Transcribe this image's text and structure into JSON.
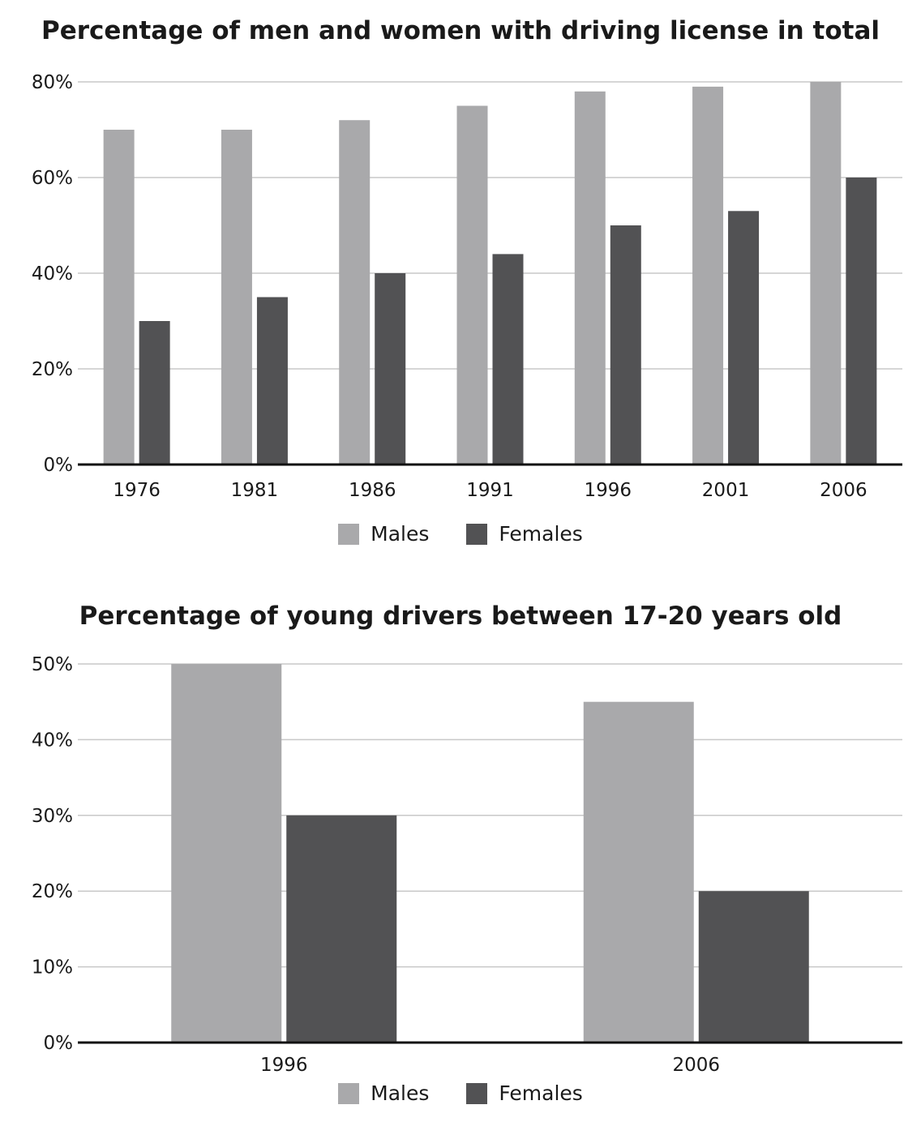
{
  "colors": {
    "males": "#a9a9ab",
    "females": "#525254",
    "grid": "#c8c8c8",
    "axis": "#111111"
  },
  "chart_data": [
    {
      "type": "bar",
      "title": "Percentage of men and women with driving license in total",
      "categories": [
        "1976",
        "1981",
        "1986",
        "1991",
        "1996",
        "2001",
        "2006"
      ],
      "series": [
        {
          "name": "Males",
          "values": [
            70,
            70,
            72,
            75,
            78,
            79,
            80
          ]
        },
        {
          "name": "Females",
          "values": [
            30,
            35,
            40,
            44,
            50,
            53,
            60
          ]
        }
      ],
      "xlabel": "",
      "ylabel": "",
      "ylim": [
        0,
        80
      ],
      "yticks": [
        "0%",
        "20%",
        "40%",
        "60%",
        "80%"
      ],
      "ytick_values": [
        0,
        20,
        40,
        60,
        80
      ],
      "grid": true,
      "legend": "bottom-center"
    },
    {
      "type": "bar",
      "title": "Percentage of young drivers between 17-20 years old",
      "categories": [
        "1996",
        "2006"
      ],
      "series": [
        {
          "name": "Males",
          "values": [
            50,
            45
          ]
        },
        {
          "name": "Females",
          "values": [
            30,
            20
          ]
        }
      ],
      "xlabel": "",
      "ylabel": "",
      "ylim": [
        0,
        50
      ],
      "yticks": [
        "0%",
        "10%",
        "20%",
        "30%",
        "40%",
        "50%"
      ],
      "ytick_values": [
        0,
        10,
        20,
        30,
        40,
        50
      ],
      "grid": true,
      "legend": "bottom-center"
    }
  ]
}
